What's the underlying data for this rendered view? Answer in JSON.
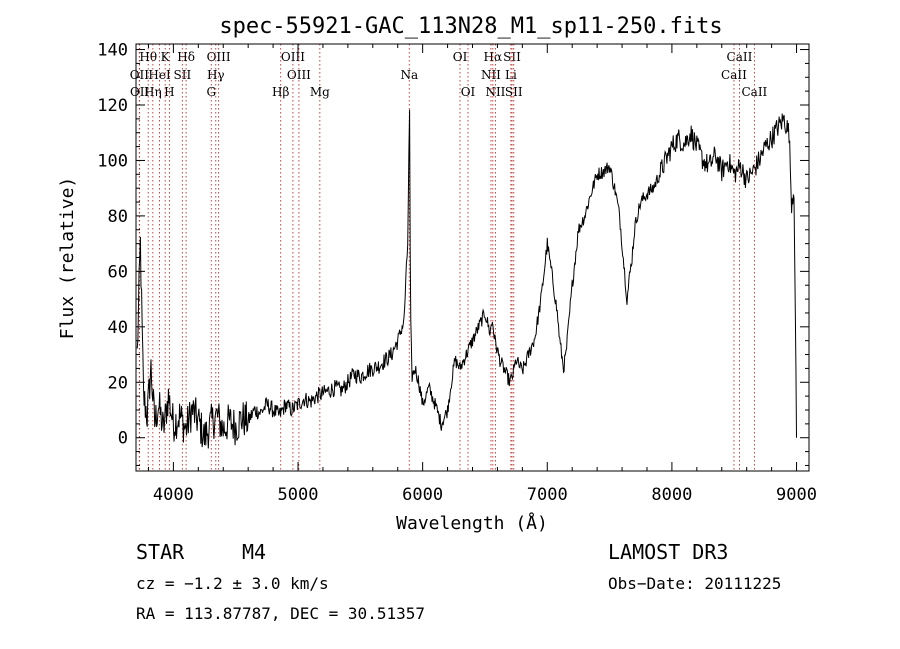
{
  "chart_data": {
    "type": "line",
    "title": "spec-55921-GAC_113N28_M1_sp11-250.fits",
    "xlabel": "Wavelength (Å)",
    "ylabel": "Flux (relative)",
    "xlim": [
      3700,
      9100
    ],
    "ylim": [
      -12,
      142
    ],
    "x_ticks": [
      4000,
      5000,
      6000,
      7000,
      8000,
      9000
    ],
    "x_tick_labels": [
      "4000",
      "5000",
      "6000",
      "7000",
      "8000",
      "9000"
    ],
    "y_ticks": [
      0,
      20,
      40,
      60,
      80,
      100,
      120,
      140
    ],
    "y_tick_labels": [
      "0",
      "20",
      "40",
      "60",
      "80",
      "100",
      "120",
      "140"
    ],
    "spectrum": {
      "wavelength": [
        3710,
        3735,
        3760,
        3790,
        3820,
        3850,
        3880,
        3920,
        3960,
        4000,
        4050,
        4100,
        4150,
        4200,
        4250,
        4300,
        4350,
        4400,
        4450,
        4500,
        4550,
        4600,
        4650,
        4700,
        4750,
        4800,
        4850,
        4900,
        4950,
        5000,
        5050,
        5100,
        5150,
        5200,
        5250,
        5300,
        5350,
        5400,
        5450,
        5500,
        5550,
        5600,
        5650,
        5700,
        5750,
        5800,
        5850,
        5880,
        5895,
        5900,
        5905,
        5915,
        5940,
        5970,
        6000,
        6050,
        6100,
        6150,
        6200,
        6230,
        6260,
        6300,
        6350,
        6400,
        6450,
        6500,
        6540,
        6560,
        6580,
        6620,
        6650,
        6700,
        6720,
        6750,
        6800,
        6850,
        6900,
        6950,
        7000,
        7050,
        7080,
        7100,
        7130,
        7150,
        7180,
        7200,
        7250,
        7300,
        7350,
        7400,
        7450,
        7500,
        7550,
        7580,
        7600,
        7620,
        7640,
        7660,
        7680,
        7700,
        7720,
        7750,
        7800,
        7850,
        7900,
        7950,
        8000,
        8050,
        8100,
        8150,
        8200,
        8250,
        8300,
        8350,
        8400,
        8450,
        8500,
        8550,
        8600,
        8650,
        8700,
        8750,
        8800,
        8850,
        8900,
        8940,
        8960,
        8980,
        9000
      ],
      "flux": [
        30,
        70,
        15,
        8,
        25,
        5,
        12,
        3,
        15,
        5,
        8,
        3,
        10,
        6,
        0,
        5,
        8,
        3,
        6,
        4,
        7,
        6,
        10,
        9,
        12,
        10,
        8,
        12,
        10,
        12,
        14,
        13,
        15,
        16,
        17,
        18,
        17,
        20,
        23,
        22,
        24,
        25,
        26,
        28,
        30,
        35,
        42,
        70,
        118,
        65,
        40,
        22,
        25,
        20,
        12,
        18,
        12,
        5,
        10,
        20,
        28,
        25,
        30,
        35,
        40,
        45,
        38,
        42,
        35,
        28,
        25,
        20,
        22,
        28,
        24,
        30,
        36,
        50,
        70,
        55,
        45,
        35,
        25,
        30,
        45,
        55,
        75,
        80,
        88,
        95,
        96,
        98,
        88,
        80,
        70,
        60,
        50,
        58,
        65,
        75,
        80,
        85,
        88,
        90,
        95,
        100,
        105,
        108,
        106,
        110,
        105,
        100,
        98,
        102,
        96,
        100,
        95,
        98,
        93,
        96,
        100,
        105,
        108,
        112,
        115,
        110,
        85,
        90,
        0
      ]
    },
    "lines": [
      {
        "label": "Hθ",
        "wavelength": 3798,
        "row": 0
      },
      {
        "label": "K",
        "wavelength": 3934,
        "row": 0
      },
      {
        "label": "Hδ",
        "wavelength": 4102,
        "row": 0
      },
      {
        "label": "OIII",
        "wavelength": 4363,
        "row": 0
      },
      {
        "label": "OIII",
        "wavelength": 4959,
        "row": 0
      },
      {
        "label": "OI",
        "wavelength": 6300,
        "row": 0
      },
      {
        "label": "Hα",
        "wavelength": 6563,
        "row": 0
      },
      {
        "label": "SII",
        "wavelength": 6717,
        "row": 0
      },
      {
        "label": "CaII",
        "wavelength": 8542,
        "row": 0
      },
      {
        "label": "OII",
        "wavelength": 3727,
        "row": 1
      },
      {
        "label": "HeI",
        "wavelength": 3889,
        "row": 1
      },
      {
        "label": "SII",
        "wavelength": 4072,
        "row": 1
      },
      {
        "label": "Hγ",
        "wavelength": 4340,
        "row": 1
      },
      {
        "label": "Na",
        "wavelength": 5893,
        "row": 1
      },
      {
        "label": "OIII",
        "wavelength": 5007,
        "row": 1
      },
      {
        "label": "NII",
        "wavelength": 6548,
        "row": 1
      },
      {
        "label": "Li",
        "wavelength": 6708,
        "row": 1
      },
      {
        "label": "CaII",
        "wavelength": 8498,
        "row": 1
      },
      {
        "label": "OII",
        "wavelength": 3729,
        "row": 2
      },
      {
        "label": "Hη",
        "wavelength": 3835,
        "row": 2
      },
      {
        "label": "H",
        "wavelength": 3968,
        "row": 2
      },
      {
        "label": "G",
        "wavelength": 4304,
        "row": 2
      },
      {
        "label": "Hβ",
        "wavelength": 4861,
        "row": 2
      },
      {
        "label": "Mg",
        "wavelength": 5175,
        "row": 2
      },
      {
        "label": "OI",
        "wavelength": 6364,
        "row": 2
      },
      {
        "label": "NII",
        "wavelength": 6584,
        "row": 2
      },
      {
        "label": "SII",
        "wavelength": 6731,
        "row": 2
      },
      {
        "label": "CaII",
        "wavelength": 8662,
        "row": 2
      }
    ]
  },
  "info": {
    "class": "STAR",
    "subclass": "M4",
    "cz": "cz = −1.2 ± 3.0 km/s",
    "coords": "RA = 113.87787, DEC =  30.51357",
    "survey": "LAMOST DR3",
    "obs_date": "Obs−Date: 20111225"
  },
  "colors": {
    "line_marker": "#c03030",
    "spectrum": "#000000"
  }
}
